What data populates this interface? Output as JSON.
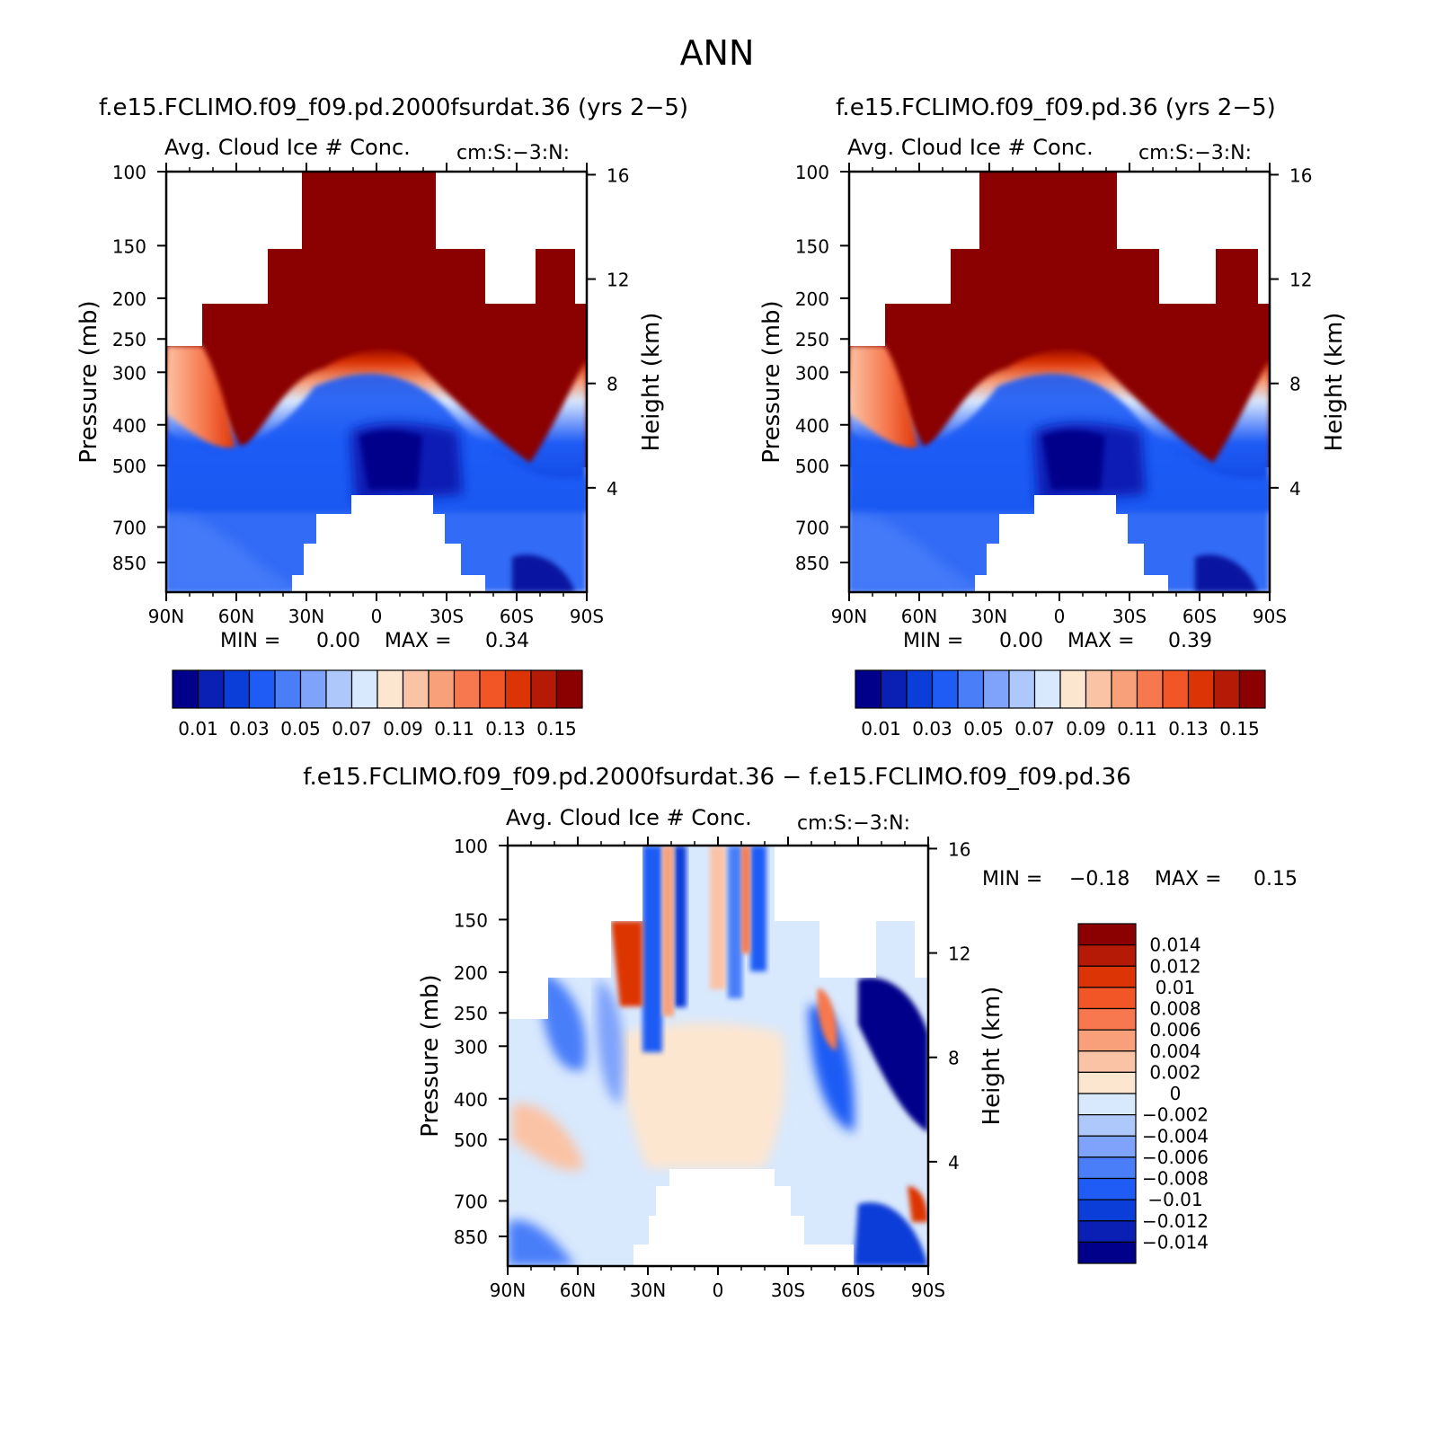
{
  "figure_title": "ANN",
  "diff_title": "f.e15.FCLIMO.f09_f09.pd.2000fsurdat.36 − f.e15.FCLIMO.f09_f09.pd.36",
  "chart_data": [
    {
      "type": "heatmap",
      "title": "f.e15.FCLIMO.f09_f09.pd.2000fsurdat.36 (yrs 2−5)",
      "variable": "Avg. Cloud Ice # Conc.",
      "units": "cm:S:−3:N:",
      "ylabel": "Pressure (mb)",
      "ylabel_right": "Height (km)",
      "x_ticks": [
        "90N",
        "60N",
        "30N",
        "0",
        "30S",
        "60S",
        "90S"
      ],
      "y_ticks": [
        100,
        150,
        200,
        250,
        300,
        400,
        500,
        700,
        850
      ],
      "height_ticks": [
        16,
        12,
        8,
        4
      ],
      "min_label": "MIN =",
      "min": "0.00",
      "max_label": "MAX =",
      "max": "0.34",
      "colorbar_labels": [
        "0.01",
        "0.03",
        "0.05",
        "0.07",
        "0.09",
        "0.11",
        "0.13",
        "0.15"
      ]
    },
    {
      "type": "heatmap",
      "title": "f.e15.FCLIMO.f09_f09.pd.36 (yrs 2−5)",
      "variable": "Avg. Cloud Ice # Conc.",
      "units": "cm:S:−3:N:",
      "ylabel": "Pressure (mb)",
      "ylabel_right": "Height (km)",
      "x_ticks": [
        "90N",
        "60N",
        "30N",
        "0",
        "30S",
        "60S",
        "90S"
      ],
      "y_ticks": [
        100,
        150,
        200,
        250,
        300,
        400,
        500,
        700,
        850
      ],
      "height_ticks": [
        16,
        12,
        8,
        4
      ],
      "min_label": "MIN =",
      "min": "0.00",
      "max_label": "MAX =",
      "max": "0.39",
      "colorbar_labels": [
        "0.01",
        "0.03",
        "0.05",
        "0.07",
        "0.09",
        "0.11",
        "0.13",
        "0.15"
      ]
    },
    {
      "type": "heatmap",
      "title": "",
      "variable": "Avg. Cloud Ice # Conc.",
      "units": "cm:S:−3:N:",
      "ylabel": "Pressure (mb)",
      "ylabel_right": "Height (km)",
      "x_ticks": [
        "90N",
        "60N",
        "30N",
        "0",
        "30S",
        "60S",
        "90S"
      ],
      "y_ticks": [
        100,
        150,
        200,
        250,
        300,
        400,
        500,
        700,
        850
      ],
      "height_ticks": [
        16,
        12,
        8,
        4
      ],
      "min_label": "MIN =",
      "min": "−0.18",
      "max_label": "MAX =",
      "max": "0.15",
      "colorbar_labels": [
        "0.014",
        "0.012",
        "0.01",
        "0.008",
        "0.006",
        "0.004",
        "0.002",
        "0",
        "−0.002",
        "−0.004",
        "−0.006",
        "−0.008",
        "−0.01",
        "−0.012",
        "−0.014"
      ]
    }
  ],
  "colormaps": {
    "main": [
      "#00008b",
      "#0a1fb4",
      "#0b3ed8",
      "#1f5cf5",
      "#4a7ef9",
      "#7fa3fb",
      "#afc8fc",
      "#d8e8fd",
      "#fde6d0",
      "#fbc3a5",
      "#f8a07a",
      "#f7784e",
      "#f35626",
      "#dd3405",
      "#b41a06",
      "#8b0000"
    ],
    "diff": [
      "#00008b",
      "#0a1fb4",
      "#0b3ed8",
      "#1f5cf5",
      "#4a7ef9",
      "#7fa3fb",
      "#afc8fc",
      "#d8e8fd",
      "#fde6d0",
      "#fbc3a5",
      "#f8a07a",
      "#f7784e",
      "#f35626",
      "#dd3405",
      "#b41a06",
      "#8b0000"
    ]
  }
}
